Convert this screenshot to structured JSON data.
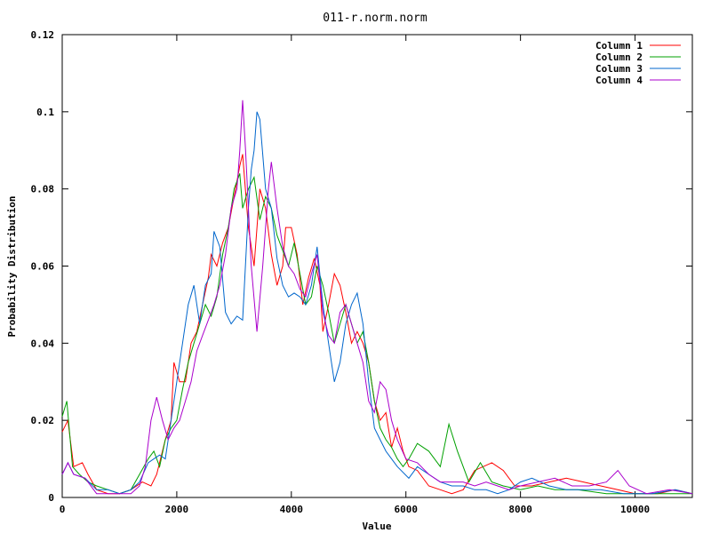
{
  "chart_data": {
    "type": "line",
    "title": "011-r.norm.norm",
    "xlabel": "Value",
    "ylabel": "Probability Distribution",
    "xlim": [
      0,
      11000
    ],
    "ylim": [
      0,
      0.12
    ],
    "xticks": [
      0,
      2000,
      4000,
      6000,
      8000,
      10000
    ],
    "yticks": [
      0,
      0.02,
      0.04,
      0.06,
      0.08,
      0.1,
      0.12
    ],
    "xtick_labels": [
      "0",
      "2000",
      "4000",
      "6000",
      "8000",
      "10000"
    ],
    "ytick_labels": [
      "0",
      "0.02",
      "0.04",
      "0.06",
      "0.08",
      "0.1",
      "0.12"
    ],
    "grid": false,
    "legend_position": "top-right",
    "series": [
      {
        "name": "Column 1",
        "color": "#ff0000",
        "points": [
          [
            0,
            0.017
          ],
          [
            100,
            0.02
          ],
          [
            200,
            0.008
          ],
          [
            350,
            0.009
          ],
          [
            450,
            0.006
          ],
          [
            600,
            0.002
          ],
          [
            800,
            0.001
          ],
          [
            1000,
            0.001
          ],
          [
            1200,
            0.002
          ],
          [
            1400,
            0.004
          ],
          [
            1550,
            0.003
          ],
          [
            1650,
            0.006
          ],
          [
            1800,
            0.015
          ],
          [
            1900,
            0.02
          ],
          [
            1950,
            0.035
          ],
          [
            2050,
            0.03
          ],
          [
            2150,
            0.03
          ],
          [
            2250,
            0.04
          ],
          [
            2350,
            0.043
          ],
          [
            2450,
            0.05
          ],
          [
            2550,
            0.057
          ],
          [
            2600,
            0.063
          ],
          [
            2700,
            0.06
          ],
          [
            2800,
            0.066
          ],
          [
            2900,
            0.07
          ],
          [
            3000,
            0.078
          ],
          [
            3100,
            0.086
          ],
          [
            3150,
            0.089
          ],
          [
            3250,
            0.07
          ],
          [
            3350,
            0.06
          ],
          [
            3450,
            0.08
          ],
          [
            3550,
            0.075
          ],
          [
            3650,
            0.063
          ],
          [
            3750,
            0.055
          ],
          [
            3850,
            0.06
          ],
          [
            3900,
            0.07
          ],
          [
            4000,
            0.07
          ],
          [
            4100,
            0.063
          ],
          [
            4200,
            0.05
          ],
          [
            4300,
            0.057
          ],
          [
            4400,
            0.062
          ],
          [
            4500,
            0.055
          ],
          [
            4550,
            0.043
          ],
          [
            4650,
            0.05
          ],
          [
            4750,
            0.058
          ],
          [
            4850,
            0.055
          ],
          [
            4950,
            0.048
          ],
          [
            5050,
            0.04
          ],
          [
            5150,
            0.043
          ],
          [
            5250,
            0.04
          ],
          [
            5350,
            0.035
          ],
          [
            5450,
            0.025
          ],
          [
            5550,
            0.02
          ],
          [
            5650,
            0.022
          ],
          [
            5750,
            0.013
          ],
          [
            5850,
            0.018
          ],
          [
            5950,
            0.012
          ],
          [
            6050,
            0.008
          ],
          [
            6200,
            0.007
          ],
          [
            6400,
            0.003
          ],
          [
            6600,
            0.002
          ],
          [
            6800,
            0.001
          ],
          [
            7000,
            0.002
          ],
          [
            7200,
            0.007
          ],
          [
            7500,
            0.009
          ],
          [
            7700,
            0.007
          ],
          [
            7900,
            0.003
          ],
          [
            8200,
            0.003
          ],
          [
            8500,
            0.004
          ],
          [
            8800,
            0.005
          ],
          [
            9100,
            0.004
          ],
          [
            9400,
            0.003
          ],
          [
            9700,
            0.002
          ],
          [
            10000,
            0.001
          ],
          [
            10400,
            0.001
          ],
          [
            10700,
            0.002
          ],
          [
            11000,
            0.001
          ]
        ]
      },
      {
        "name": "Column 2",
        "color": "#00a000",
        "points": [
          [
            0,
            0.021
          ],
          [
            80,
            0.025
          ],
          [
            180,
            0.008
          ],
          [
            300,
            0.006
          ],
          [
            450,
            0.004
          ],
          [
            600,
            0.003
          ],
          [
            800,
            0.002
          ],
          [
            1000,
            0.001
          ],
          [
            1200,
            0.002
          ],
          [
            1350,
            0.006
          ],
          [
            1500,
            0.01
          ],
          [
            1600,
            0.012
          ],
          [
            1700,
            0.008
          ],
          [
            1800,
            0.015
          ],
          [
            1900,
            0.018
          ],
          [
            2000,
            0.02
          ],
          [
            2100,
            0.028
          ],
          [
            2200,
            0.035
          ],
          [
            2300,
            0.04
          ],
          [
            2400,
            0.045
          ],
          [
            2500,
            0.05
          ],
          [
            2600,
            0.047
          ],
          [
            2700,
            0.052
          ],
          [
            2800,
            0.063
          ],
          [
            2900,
            0.07
          ],
          [
            3000,
            0.08
          ],
          [
            3100,
            0.084
          ],
          [
            3150,
            0.075
          ],
          [
            3250,
            0.08
          ],
          [
            3350,
            0.083
          ],
          [
            3450,
            0.072
          ],
          [
            3550,
            0.078
          ],
          [
            3650,
            0.075
          ],
          [
            3750,
            0.068
          ],
          [
            3850,
            0.064
          ],
          [
            3950,
            0.06
          ],
          [
            4050,
            0.066
          ],
          [
            4150,
            0.058
          ],
          [
            4250,
            0.05
          ],
          [
            4350,
            0.052
          ],
          [
            4450,
            0.06
          ],
          [
            4550,
            0.055
          ],
          [
            4650,
            0.048
          ],
          [
            4750,
            0.04
          ],
          [
            4850,
            0.045
          ],
          [
            4950,
            0.05
          ],
          [
            5050,
            0.045
          ],
          [
            5150,
            0.04
          ],
          [
            5250,
            0.043
          ],
          [
            5350,
            0.035
          ],
          [
            5450,
            0.025
          ],
          [
            5550,
            0.018
          ],
          [
            5650,
            0.015
          ],
          [
            5750,
            0.013
          ],
          [
            5850,
            0.01
          ],
          [
            5950,
            0.008
          ],
          [
            6050,
            0.01
          ],
          [
            6200,
            0.014
          ],
          [
            6400,
            0.012
          ],
          [
            6600,
            0.008
          ],
          [
            6750,
            0.019
          ],
          [
            6900,
            0.012
          ],
          [
            7100,
            0.004
          ],
          [
            7300,
            0.009
          ],
          [
            7500,
            0.004
          ],
          [
            7700,
            0.003
          ],
          [
            8000,
            0.002
          ],
          [
            8300,
            0.003
          ],
          [
            8600,
            0.002
          ],
          [
            9000,
            0.002
          ],
          [
            9500,
            0.001
          ],
          [
            10000,
            0.001
          ],
          [
            10500,
            0.001
          ],
          [
            11000,
            0.001
          ]
        ]
      },
      {
        "name": "Column 3",
        "color": "#0066cc",
        "points": [
          [
            0,
            0.006
          ],
          [
            100,
            0.009
          ],
          [
            200,
            0.006
          ],
          [
            400,
            0.005
          ],
          [
            600,
            0.002
          ],
          [
            800,
            0.002
          ],
          [
            1000,
            0.001
          ],
          [
            1200,
            0.002
          ],
          [
            1350,
            0.004
          ],
          [
            1500,
            0.009
          ],
          [
            1600,
            0.01
          ],
          [
            1700,
            0.011
          ],
          [
            1800,
            0.01
          ],
          [
            1900,
            0.02
          ],
          [
            2000,
            0.03
          ],
          [
            2100,
            0.04
          ],
          [
            2200,
            0.05
          ],
          [
            2300,
            0.055
          ],
          [
            2400,
            0.045
          ],
          [
            2500,
            0.055
          ],
          [
            2600,
            0.058
          ],
          [
            2650,
            0.069
          ],
          [
            2750,
            0.065
          ],
          [
            2850,
            0.048
          ],
          [
            2950,
            0.045
          ],
          [
            3050,
            0.047
          ],
          [
            3150,
            0.046
          ],
          [
            3250,
            0.075
          ],
          [
            3300,
            0.085
          ],
          [
            3350,
            0.09
          ],
          [
            3400,
            0.1
          ],
          [
            3450,
            0.098
          ],
          [
            3550,
            0.08
          ],
          [
            3650,
            0.075
          ],
          [
            3750,
            0.062
          ],
          [
            3850,
            0.055
          ],
          [
            3950,
            0.052
          ],
          [
            4050,
            0.053
          ],
          [
            4150,
            0.052
          ],
          [
            4250,
            0.05
          ],
          [
            4350,
            0.055
          ],
          [
            4450,
            0.065
          ],
          [
            4550,
            0.05
          ],
          [
            4650,
            0.04
          ],
          [
            4750,
            0.03
          ],
          [
            4850,
            0.035
          ],
          [
            4950,
            0.045
          ],
          [
            5050,
            0.05
          ],
          [
            5150,
            0.053
          ],
          [
            5250,
            0.045
          ],
          [
            5350,
            0.03
          ],
          [
            5450,
            0.018
          ],
          [
            5550,
            0.015
          ],
          [
            5650,
            0.012
          ],
          [
            5750,
            0.01
          ],
          [
            5850,
            0.008
          ],
          [
            6050,
            0.005
          ],
          [
            6200,
            0.008
          ],
          [
            6400,
            0.006
          ],
          [
            6600,
            0.004
          ],
          [
            6800,
            0.003
          ],
          [
            7000,
            0.003
          ],
          [
            7200,
            0.002
          ],
          [
            7400,
            0.002
          ],
          [
            7600,
            0.001
          ],
          [
            7800,
            0.002
          ],
          [
            8000,
            0.004
          ],
          [
            8200,
            0.005
          ],
          [
            8500,
            0.003
          ],
          [
            8800,
            0.002
          ],
          [
            9100,
            0.002
          ],
          [
            9400,
            0.002
          ],
          [
            9800,
            0.001
          ],
          [
            10300,
            0.001
          ],
          [
            10700,
            0.002
          ],
          [
            11000,
            0.001
          ]
        ]
      },
      {
        "name": "Column 4",
        "color": "#aa00cc",
        "points": [
          [
            0,
            0.006
          ],
          [
            100,
            0.009
          ],
          [
            200,
            0.006
          ],
          [
            400,
            0.005
          ],
          [
            600,
            0.001
          ],
          [
            800,
            0.001
          ],
          [
            1000,
            0.001
          ],
          [
            1200,
            0.001
          ],
          [
            1350,
            0.003
          ],
          [
            1450,
            0.008
          ],
          [
            1550,
            0.02
          ],
          [
            1650,
            0.026
          ],
          [
            1750,
            0.02
          ],
          [
            1850,
            0.015
          ],
          [
            1950,
            0.018
          ],
          [
            2050,
            0.02
          ],
          [
            2150,
            0.025
          ],
          [
            2250,
            0.03
          ],
          [
            2350,
            0.038
          ],
          [
            2450,
            0.042
          ],
          [
            2550,
            0.046
          ],
          [
            2650,
            0.05
          ],
          [
            2750,
            0.055
          ],
          [
            2850,
            0.063
          ],
          [
            2950,
            0.075
          ],
          [
            3050,
            0.08
          ],
          [
            3100,
            0.09
          ],
          [
            3150,
            0.103
          ],
          [
            3200,
            0.09
          ],
          [
            3300,
            0.06
          ],
          [
            3400,
            0.043
          ],
          [
            3500,
            0.06
          ],
          [
            3600,
            0.08
          ],
          [
            3650,
            0.087
          ],
          [
            3750,
            0.075
          ],
          [
            3850,
            0.065
          ],
          [
            3950,
            0.06
          ],
          [
            4050,
            0.058
          ],
          [
            4150,
            0.054
          ],
          [
            4250,
            0.052
          ],
          [
            4350,
            0.058
          ],
          [
            4450,
            0.063
          ],
          [
            4550,
            0.048
          ],
          [
            4650,
            0.042
          ],
          [
            4750,
            0.04
          ],
          [
            4850,
            0.048
          ],
          [
            4950,
            0.05
          ],
          [
            5050,
            0.045
          ],
          [
            5150,
            0.04
          ],
          [
            5250,
            0.035
          ],
          [
            5350,
            0.025
          ],
          [
            5450,
            0.022
          ],
          [
            5550,
            0.03
          ],
          [
            5650,
            0.028
          ],
          [
            5750,
            0.02
          ],
          [
            5850,
            0.015
          ],
          [
            6000,
            0.01
          ],
          [
            6200,
            0.009
          ],
          [
            6400,
            0.006
          ],
          [
            6600,
            0.004
          ],
          [
            6800,
            0.004
          ],
          [
            7000,
            0.004
          ],
          [
            7200,
            0.003
          ],
          [
            7400,
            0.004
          ],
          [
            7600,
            0.003
          ],
          [
            7800,
            0.002
          ],
          [
            8000,
            0.003
          ],
          [
            8300,
            0.004
          ],
          [
            8600,
            0.005
          ],
          [
            8900,
            0.003
          ],
          [
            9200,
            0.003
          ],
          [
            9500,
            0.004
          ],
          [
            9700,
            0.007
          ],
          [
            9900,
            0.003
          ],
          [
            10200,
            0.001
          ],
          [
            10600,
            0.002
          ],
          [
            11000,
            0.001
          ]
        ]
      }
    ]
  }
}
